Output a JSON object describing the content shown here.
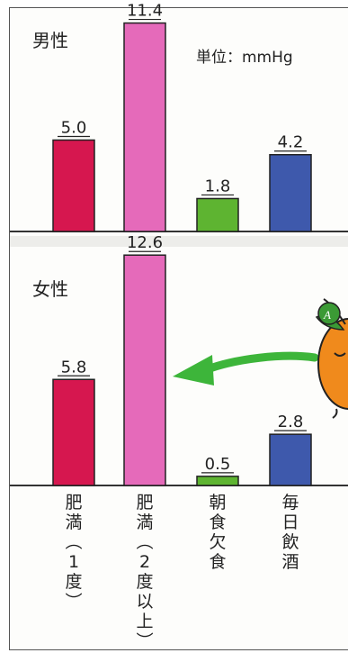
{
  "chart_data": [
    {
      "type": "bar",
      "title": "男性",
      "unit": "単位：mmHg",
      "categories": [
        "肥満（1度）",
        "肥満（2度以上）",
        "朝食欠食",
        "毎日飲酒"
      ],
      "values": [
        5.0,
        11.4,
        1.8,
        4.2
      ],
      "value_labels": [
        "5.0",
        "11.4",
        "1.8",
        "4.2"
      ],
      "colors": [
        "#d6174f",
        "#e56aba",
        "#5eb431",
        "#3e59ac"
      ]
    },
    {
      "type": "bar",
      "title": "女性",
      "categories": [
        "肥満（1度）",
        "肥満（2度以上）",
        "朝食欠食",
        "毎日飲酒"
      ],
      "values": [
        5.8,
        12.6,
        0.5,
        2.8
      ],
      "value_labels": [
        "5.8",
        "12.6",
        "0.5",
        "2.8"
      ],
      "colors": [
        "#d6174f",
        "#e56aba",
        "#5eb431",
        "#3e59ac"
      ]
    }
  ],
  "category_labels": [
    [
      "肥",
      "満",
      "（",
      "1",
      "度",
      "）"
    ],
    [
      "肥",
      "満",
      "（",
      "2",
      "度",
      "以",
      "上",
      "）"
    ],
    [
      "朝",
      "食",
      "欠",
      "食"
    ],
    [
      "毎",
      "日",
      "飲",
      "酒"
    ]
  ],
  "accent_colors": {
    "arrow": "#3db53a",
    "mascot": "#f08a1c",
    "leaf": "#3b9a35"
  },
  "decor": {
    "mascot_leaf_letter": "A"
  }
}
